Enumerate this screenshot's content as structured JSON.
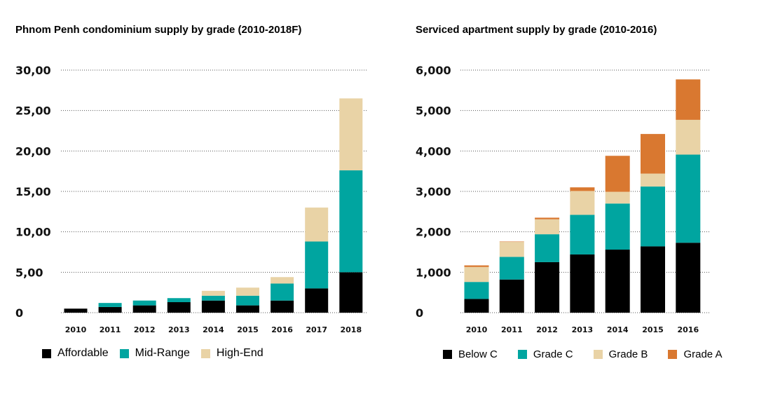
{
  "chart_data": [
    {
      "type": "bar",
      "stacked": true,
      "title": "Phnom Penh condominium supply by grade (2010-2018F)",
      "xlabel": "",
      "ylabel": "",
      "ylim": [
        0,
        30
      ],
      "yticks": [
        0,
        5,
        10,
        15,
        20,
        25,
        30
      ],
      "ytick_labels": [
        "0",
        "5,00",
        "10,00",
        "15,00",
        "20,00",
        "25,00",
        "30,00"
      ],
      "grid": "horizontal dotted",
      "legend_position": "bottom",
      "categories": [
        "2010",
        "2011",
        "2012",
        "2013",
        "2014",
        "2015",
        "2016",
        "2017",
        "2018"
      ],
      "series": [
        {
          "name": "Affordable",
          "color": "#000000",
          "values": [
            0.5,
            0.7,
            0.9,
            1.3,
            1.5,
            0.9,
            1.5,
            3.0,
            5.0
          ]
        },
        {
          "name": "Mid-Range",
          "color": "#00A5A0",
          "values": [
            0.0,
            0.5,
            0.6,
            0.5,
            0.6,
            1.2,
            2.1,
            5.8,
            12.6
          ]
        },
        {
          "name": "High-End",
          "color": "#E9D3A6",
          "values": [
            0.0,
            0.0,
            0.0,
            0.0,
            0.6,
            1.0,
            0.8,
            4.2,
            8.9
          ]
        }
      ]
    },
    {
      "type": "bar",
      "stacked": true,
      "title": "Serviced apartment supply by grade (2010-2016)",
      "xlabel": "",
      "ylabel": "",
      "ylim": [
        0,
        6000
      ],
      "yticks": [
        0,
        1000,
        2000,
        3000,
        4000,
        5000,
        6000
      ],
      "ytick_labels": [
        "0",
        "1,000",
        "2,000",
        "3,000",
        "4,000",
        "5,000",
        "6,000"
      ],
      "grid": "horizontal dotted",
      "legend_position": "bottom",
      "categories": [
        "2010",
        "2011",
        "2012",
        "2013",
        "2014",
        "2015",
        "2016"
      ],
      "series": [
        {
          "name": "Below C",
          "color": "#000000",
          "values": [
            340,
            820,
            1250,
            1440,
            1560,
            1640,
            1730
          ]
        },
        {
          "name": "Grade C",
          "color": "#00A5A0",
          "values": [
            420,
            560,
            690,
            980,
            1140,
            1480,
            2180
          ]
        },
        {
          "name": "Grade B",
          "color": "#E9D3A6",
          "values": [
            370,
            370,
            370,
            590,
            290,
            320,
            860
          ]
        },
        {
          "name": "Grade A",
          "color": "#D97830",
          "values": [
            40,
            10,
            40,
            90,
            890,
            980,
            1000
          ]
        }
      ]
    }
  ]
}
